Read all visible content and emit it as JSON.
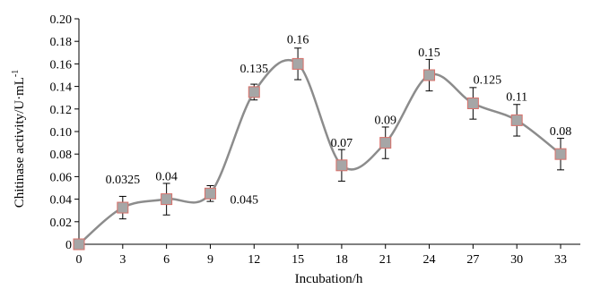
{
  "chart_data": {
    "type": "line",
    "title": "",
    "xlabel": "Incubation/h",
    "ylabel": "Chitinase activity/U·mL",
    "ylabel_superscript": "-1",
    "x": [
      0,
      3,
      6,
      9,
      12,
      15,
      18,
      21,
      24,
      27,
      30,
      33
    ],
    "xlim": [
      0,
      33
    ],
    "ylim": [
      0,
      0.2
    ],
    "xticks": [
      "0",
      "3",
      "6",
      "9",
      "12",
      "15",
      "18",
      "21",
      "24",
      "27",
      "30",
      "33"
    ],
    "yticks": [
      "0",
      "0.02",
      "0.04",
      "0.06",
      "0.08",
      "0.10",
      "0.12",
      "0.14",
      "0.16",
      "0.18",
      "0.20"
    ],
    "grid": false,
    "series": [
      {
        "values": [
          0,
          0.0325,
          0.04,
          0.045,
          0.135,
          0.16,
          0.07,
          0.09,
          0.15,
          0.125,
          0.11,
          0.08
        ],
        "errors": [
          0,
          0.01,
          0.014,
          0.007,
          0.007,
          0.014,
          0.014,
          0.014,
          0.014,
          0.014,
          0.014,
          0.014
        ],
        "labels": [
          "",
          "0.0325",
          "0.04",
          "0.045",
          "0.135",
          "0.16",
          "0.07",
          "0.09",
          "0.15",
          "0.125",
          "0.11",
          "0.08"
        ],
        "line_color": "#8c8c8c",
        "marker_fill": "#a6a6a6",
        "marker_edge": "#d9706a"
      }
    ]
  }
}
